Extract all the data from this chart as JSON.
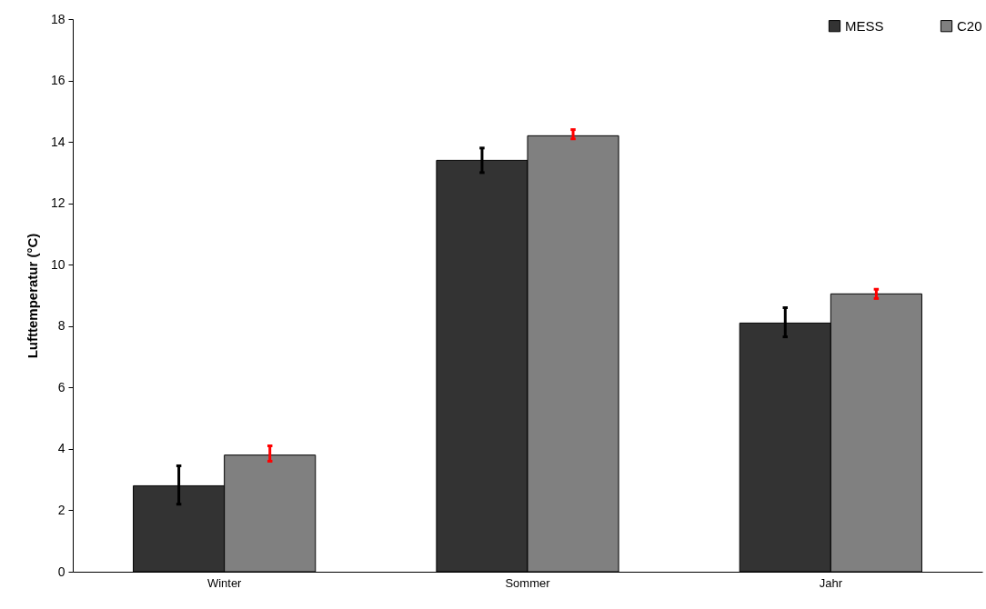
{
  "chart_data": {
    "type": "bar",
    "ylabel": "Lufttemperatur (°C)",
    "categories": [
      "Winter",
      "Sommer",
      "Jahr"
    ],
    "series": [
      {
        "name": "MESS",
        "color": "#333333",
        "values": [
          2.8,
          13.4,
          8.1
        ],
        "errors": [
          [
            2.2,
            3.45
          ],
          [
            13.0,
            13.8
          ],
          [
            7.65,
            8.6
          ]
        ]
      },
      {
        "name": "C20",
        "color": "#808080",
        "values": [
          3.8,
          14.2,
          9.05
        ],
        "errors": [
          [
            3.6,
            4.1
          ],
          [
            14.1,
            14.4
          ],
          [
            8.9,
            9.2
          ]
        ]
      }
    ],
    "ylim": [
      0,
      18
    ],
    "yticks": [
      0,
      2,
      4,
      6,
      8,
      10,
      12,
      14,
      16,
      18
    ],
    "grid": false,
    "legend": "top right"
  }
}
